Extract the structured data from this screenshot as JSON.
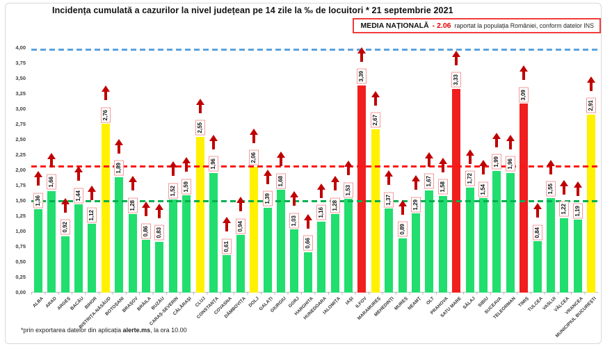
{
  "media_box": {
    "label": "MEDIA NAȚIONALĂ",
    "value": "- 2.06",
    "note": "raportat la populația României, conform datelor INS"
  },
  "footnote": {
    "prefix": "*prin exportarea datelor din aplicația ",
    "bold": "alerte.ms",
    "suffix": ", la ora 10.00"
  },
  "chart_data": {
    "type": "bar",
    "title": "Incidența cumulată a cazurilor la nivel județean pe 14 zile la ‰ de locuitori * 21 septembrie 2021",
    "xlabel": "",
    "ylabel": "",
    "ylim": [
      0,
      4
    ],
    "ytick_step": 0.25,
    "ytick_labels": [
      "0,00",
      "0,25",
      "0,50",
      "0,75",
      "1,00",
      "1,25",
      "1,50",
      "1,75",
      "2,00",
      "2,25",
      "2,50",
      "2,75",
      "3,00",
      "3,25",
      "3,50",
      "3,75",
      "4,00"
    ],
    "grid": false,
    "categories": [
      "ALBA",
      "ARAD",
      "ARGEȘ",
      "BACĂU",
      "BIHOR",
      "BISTRIȚA-NĂSĂUD",
      "BOTOȘANI",
      "BRAȘOV",
      "BRĂILA",
      "BUZĂU",
      "CARAȘ-SEVERIN",
      "CĂLĂRAȘI",
      "CLUJ",
      "CONSTANȚA",
      "COVASNA",
      "DÂMBOVIȚA",
      "DOLJ",
      "GALAȚI",
      "GIURGIU",
      "GORJ",
      "HARGHITA",
      "HUNEDOARA",
      "IALOMIȚA",
      "IAȘI",
      "ILFOV",
      "MARAMUREȘ",
      "MEHEDINȚI",
      "MUREȘ",
      "NEAMȚ",
      "OLT",
      "PRAHOVA",
      "SATU MARE",
      "SĂLAJ",
      "SIBIU",
      "SUCEAVA",
      "TELEORMAN",
      "TIMIȘ",
      "TULCEA",
      "VASLUI",
      "VÂLCEA",
      "VRANCEA",
      "MUNICIPIUL BUCUREȘTI"
    ],
    "values": [
      1.36,
      1.66,
      0.92,
      1.44,
      1.12,
      2.76,
      1.89,
      1.28,
      0.86,
      0.83,
      1.52,
      1.59,
      2.55,
      1.96,
      0.61,
      0.94,
      2.06,
      1.39,
      1.68,
      1.03,
      0.66,
      1.16,
      1.28,
      1.53,
      3.39,
      2.67,
      1.37,
      0.89,
      1.29,
      1.67,
      1.58,
      3.33,
      1.72,
      1.54,
      1.99,
      1.96,
      3.09,
      0.84,
      1.55,
      1.22,
      1.19,
      2.91
    ],
    "display_values": [
      "1,36",
      "1,66",
      "0,92",
      "1,44",
      "1,12",
      "2,76",
      "1,89",
      "1,28",
      "0,86",
      "0,83",
      "1,52",
      "1,59",
      "2,55",
      "1,96",
      "0,61",
      "0,94",
      "2,06",
      "1,39",
      "1,68",
      "1,03",
      "0,66",
      "1,16",
      "1,28",
      "1,53",
      "3,39",
      "2,67",
      "1,37",
      "0,89",
      "1,29",
      "1,67",
      "1,58",
      "3,33",
      "1,72",
      "1,54",
      "1,99",
      "1,96",
      "3,09",
      "0,84",
      "1,55",
      "1,22",
      "1,19",
      "2,91"
    ],
    "statuses": [
      "green",
      "green",
      "green",
      "green",
      "green",
      "yellow",
      "green",
      "green",
      "green",
      "green",
      "green",
      "green",
      "yellow",
      "green",
      "green",
      "green",
      "yellow",
      "green",
      "green",
      "green",
      "green",
      "green",
      "green",
      "green",
      "red",
      "yellow",
      "green",
      "green",
      "green",
      "green",
      "green",
      "red",
      "green",
      "green",
      "green",
      "green",
      "red",
      "green",
      "green",
      "green",
      "green",
      "yellow"
    ],
    "palette": {
      "green": "#21DE6E",
      "yellow": "#FFF100",
      "red": "#F01E1E"
    },
    "trend_arrows": {
      "direction": "up",
      "color": "#C00000"
    },
    "reference_lines": [
      {
        "name": "upper-threshold-line",
        "value": 3.97,
        "color": "#5BA3E0"
      },
      {
        "name": "national-average-line",
        "value": 2.06,
        "color": "#FF1414"
      },
      {
        "name": "alert-threshold-line",
        "value": 1.5,
        "color": "#00B050"
      }
    ],
    "legend": null
  }
}
